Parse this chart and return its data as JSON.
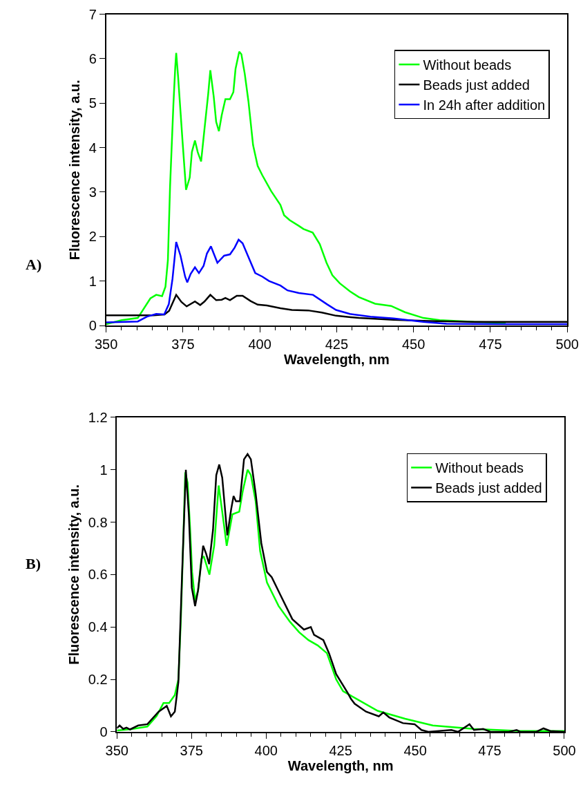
{
  "chart_data": [
    {
      "type": "line",
      "xlabel": "Wavelength, nm",
      "ylabel": "Fluorescence intensity, a.u.",
      "annotations": [
        "A)"
      ],
      "xlim": [
        350,
        500
      ],
      "ylim": [
        0,
        7
      ],
      "xticks": [
        350,
        375,
        400,
        425,
        450,
        475,
        500
      ],
      "yticks": [
        0,
        1,
        2,
        3,
        4,
        5,
        6,
        7
      ],
      "legend": "top right",
      "series": [
        {
          "name": "Without beads",
          "color": "#00ff00",
          "x": [
            350,
            355.1,
            360.3,
            364.4,
            366.3,
            368.2,
            369.3,
            370.1,
            370.8,
            371.9,
            372.5,
            372.8,
            373.4,
            374.9,
            376.0,
            377.2,
            377.9,
            378.9,
            379.8,
            380.9,
            382.0,
            383.2,
            383.9,
            385.0,
            385.8,
            386.7,
            387.6,
            388.8,
            390.3,
            391.4,
            392.1,
            393.3,
            394.0,
            395.1,
            396.3,
            397.8,
            399.3,
            400.8,
            403.7,
            406.7,
            407.9,
            409.7,
            412.7,
            414.2,
            417.2,
            419.5,
            421.7,
            423.6,
            426.0,
            429.3,
            432.2,
            437.5,
            442.7,
            447.2,
            453.2,
            458.5,
            469.7,
            480
          ],
          "values": [
            0.03,
            0.12,
            0.17,
            0.61,
            0.69,
            0.66,
            0.87,
            1.47,
            3.12,
            4.99,
            5.82,
            6.13,
            5.61,
            4.11,
            3.05,
            3.33,
            3.9,
            4.16,
            3.9,
            3.69,
            4.42,
            5.2,
            5.74,
            5.15,
            4.58,
            4.37,
            4.73,
            5.09,
            5.09,
            5.25,
            5.77,
            6.16,
            6.1,
            5.66,
            5.04,
            4.06,
            3.59,
            3.38,
            3.02,
            2.71,
            2.48,
            2.37,
            2.24,
            2.17,
            2.09,
            1.83,
            1.41,
            1.13,
            0.95,
            0.77,
            0.64,
            0.49,
            0.44,
            0.3,
            0.17,
            0.12,
            0.08,
            0.06
          ]
        },
        {
          "name": "Beads just added",
          "color": "#000000",
          "x": [
            350,
            365.5,
            369,
            370.5,
            372.8,
            374.5,
            376.2,
            378.9,
            380.6,
            382.0,
            383.9,
            385.8,
            387.6,
            388.8,
            390.3,
            392.5,
            394.4,
            397.0,
            399.3,
            402.3,
            406.7,
            410.4,
            415.7,
            420.2,
            424.8,
            432.2,
            443.5,
            455,
            469.7,
            480,
            490,
            500
          ],
          "values": [
            0.23,
            0.23,
            0.25,
            0.33,
            0.69,
            0.53,
            0.43,
            0.54,
            0.46,
            0.54,
            0.69,
            0.57,
            0.58,
            0.62,
            0.57,
            0.67,
            0.67,
            0.55,
            0.47,
            0.45,
            0.39,
            0.35,
            0.34,
            0.29,
            0.22,
            0.17,
            0.13,
            0.1,
            0.08,
            0.08,
            0.08,
            0.08
          ]
        },
        {
          "name": "In 24h after addition",
          "color": "#0000ff",
          "x": [
            350,
            360.3,
            363.3,
            366.3,
            368.9,
            370.4,
            371.6,
            372.8,
            374.2,
            375.7,
            376.4,
            377.5,
            378.9,
            380.2,
            381.7,
            382.8,
            384.1,
            385.0,
            386.2,
            388.4,
            390.3,
            391.8,
            393.1,
            394.4,
            396.3,
            398.5,
            400.8,
            403.0,
            406.7,
            409.0,
            412.7,
            417.3,
            421.8,
            424.8,
            429.3,
            436.0,
            443.5,
            453.2,
            460.7,
            480,
            500
          ],
          "values": [
            0.07,
            0.09,
            0.2,
            0.26,
            0.25,
            0.48,
            1.05,
            1.88,
            1.57,
            1.1,
            0.97,
            1.16,
            1.31,
            1.18,
            1.34,
            1.62,
            1.78,
            1.62,
            1.41,
            1.57,
            1.6,
            1.75,
            1.93,
            1.85,
            1.54,
            1.18,
            1.1,
            1.0,
            0.9,
            0.79,
            0.73,
            0.69,
            0.48,
            0.35,
            0.26,
            0.2,
            0.16,
            0.08,
            0.04,
            0.03,
            0.03
          ]
        }
      ]
    },
    {
      "type": "line",
      "xlabel": "Wavelength, nm",
      "ylabel": "Fluorescence intensity, a.u.",
      "annotations": [
        "B)"
      ],
      "xlim": [
        350,
        500
      ],
      "ylim": [
        0,
        1.2
      ],
      "xticks": [
        350,
        375,
        400,
        425,
        450,
        475,
        500
      ],
      "yticks": [
        0,
        0.2,
        0.4,
        0.6,
        0.8,
        1,
        1.2
      ],
      "legend": "top right",
      "series": [
        {
          "name": "Without beads",
          "color": "#00ff00",
          "x": [
            350,
            354.8,
            360.2,
            363.3,
            365.6,
            367.5,
            369.4,
            370.6,
            371.4,
            372.1,
            372.9,
            373.7,
            374.5,
            375.2,
            376.2,
            377.2,
            378.3,
            379.1,
            381.0,
            382.6,
            384.1,
            385.3,
            386.8,
            388.7,
            391.0,
            392.2,
            393.8,
            394.9,
            396.5,
            398.0,
            400.3,
            404.2,
            408.0,
            411.1,
            414.2,
            417.3,
            420.4,
            423.5,
            425.8,
            431.2,
            437.4,
            446.6,
            455.9,
            469.7,
            485.1,
            500
          ],
          "values": [
            0.005,
            0.01,
            0.02,
            0.06,
            0.11,
            0.11,
            0.14,
            0.2,
            0.42,
            0.68,
            0.99,
            0.95,
            0.78,
            0.61,
            0.5,
            0.54,
            0.66,
            0.67,
            0.6,
            0.71,
            0.94,
            0.84,
            0.71,
            0.83,
            0.84,
            0.92,
            1.0,
            0.98,
            0.88,
            0.69,
            0.57,
            0.48,
            0.42,
            0.38,
            0.35,
            0.33,
            0.3,
            0.2,
            0.155,
            0.12,
            0.08,
            0.05,
            0.024,
            0.011,
            0.003,
            0.003
          ]
        },
        {
          "name": "Beads just added",
          "color": "#000000",
          "x": [
            350,
            350.9,
            352.1,
            353.2,
            354.4,
            357.1,
            360.2,
            364.0,
            366.7,
            368.1,
            369.4,
            370.6,
            371.8,
            373.1,
            374.1,
            375.1,
            376.2,
            377.2,
            378.9,
            379.9,
            380.9,
            382.2,
            383.3,
            384.3,
            385.3,
            387.0,
            388.3,
            389.1,
            389.9,
            391.2,
            392.6,
            393.8,
            394.9,
            396.5,
            398.4,
            400.3,
            401.9,
            404.9,
            408.8,
            412.7,
            415.0,
            416.1,
            419.2,
            421.1,
            423.5,
            427.3,
            428.5,
            429.7,
            433.5,
            437.8,
            439.3,
            441.3,
            445.9,
            449.8,
            452.1,
            454.4,
            462.1,
            464.4,
            468.2,
            469.7,
            472.8,
            475.2,
            481.3,
            484.0,
            485.2,
            490.6,
            493.0,
            495.3,
            500
          ],
          "values": [
            0.014,
            0.024,
            0.011,
            0.016,
            0.009,
            0.024,
            0.029,
            0.077,
            0.099,
            0.059,
            0.077,
            0.19,
            0.59,
            1.0,
            0.83,
            0.55,
            0.48,
            0.54,
            0.71,
            0.68,
            0.64,
            0.77,
            0.98,
            1.02,
            0.97,
            0.75,
            0.85,
            0.9,
            0.88,
            0.88,
            1.04,
            1.06,
            1.04,
            0.91,
            0.72,
            0.61,
            0.59,
            0.52,
            0.43,
            0.39,
            0.4,
            0.37,
            0.35,
            0.3,
            0.22,
            0.15,
            0.125,
            0.107,
            0.077,
            0.059,
            0.074,
            0.055,
            0.033,
            0.029,
            0.007,
            0,
            0.007,
            0,
            0.029,
            0.007,
            0.011,
            0,
            0,
            0.007,
            0,
            0,
            0.013,
            0.003,
            0
          ]
        }
      ]
    }
  ]
}
